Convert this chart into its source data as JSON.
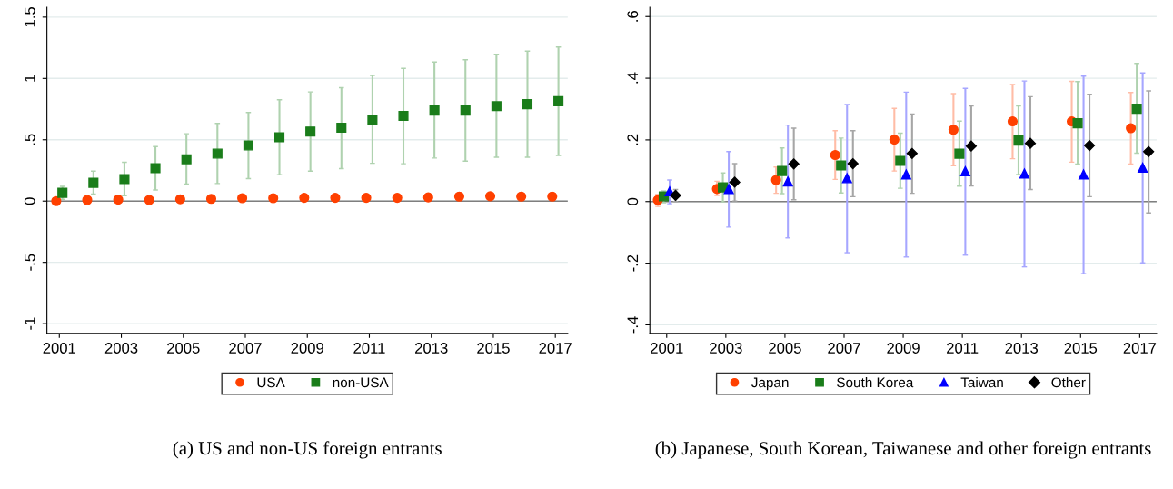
{
  "chart_data": [
    {
      "type": "scatter",
      "title": "(a) US and non-US foreign entrants",
      "xlim": [
        2000.6,
        2017.4
      ],
      "xticks": [
        2001,
        2003,
        2005,
        2007,
        2009,
        2011,
        2013,
        2015,
        2017
      ],
      "ylim": [
        -1.08,
        1.58
      ],
      "yticks": [
        {
          "value": -1,
          "label": "-1"
        },
        {
          "value": -0.5,
          "label": "-.5"
        },
        0,
        {
          "value": 0.5,
          "label": ".5"
        },
        1,
        1.5
      ],
      "grid": "y",
      "legend": "bottom",
      "ref_lines": [
        {
          "axis": "y",
          "value": 0,
          "color": "#7f7f7f"
        }
      ],
      "series": [
        {
          "name": "USA",
          "color": "#ff4000",
          "marker": "circle",
          "x": [
            2000.9,
            2001.9,
            2002.9,
            2003.9,
            2004.9,
            2005.9,
            2006.9,
            2007.9,
            2008.9,
            2009.9,
            2010.9,
            2011.9,
            2012.9,
            2013.9,
            2014.9,
            2015.9,
            2016.9
          ],
          "values": [
            0.0,
            0.009,
            0.012,
            0.009,
            0.015,
            0.018,
            0.024,
            0.024,
            0.027,
            0.027,
            0.027,
            0.027,
            0.03,
            0.037,
            0.04,
            0.037,
            0.037
          ]
        },
        {
          "name": "non-USA",
          "color": "#1a7d1a",
          "marker": "square",
          "x": [
            2001.1,
            2002.1,
            2003.1,
            2004.1,
            2005.1,
            2006.1,
            2007.1,
            2008.1,
            2009.1,
            2010.1,
            2011.1,
            2012.1,
            2013.1,
            2014.1,
            2015.1,
            2016.1,
            2017.1
          ],
          "values": [
            0.067,
            0.149,
            0.18,
            0.268,
            0.341,
            0.387,
            0.454,
            0.521,
            0.567,
            0.598,
            0.665,
            0.695,
            0.738,
            0.738,
            0.774,
            0.79,
            0.814
          ],
          "errors": [
            [
              0.015,
              0.12
            ],
            [
              0.058,
              0.244
            ],
            [
              0.043,
              0.317
            ],
            [
              0.091,
              0.445
            ],
            [
              0.14,
              0.549
            ],
            [
              0.143,
              0.634
            ],
            [
              0.183,
              0.723
            ],
            [
              0.216,
              0.826
            ],
            [
              0.244,
              0.89
            ],
            [
              0.265,
              0.924
            ],
            [
              0.308,
              1.024
            ],
            [
              0.305,
              1.082
            ],
            [
              0.351,
              1.134
            ],
            [
              0.326,
              1.152
            ],
            [
              0.357,
              1.198
            ],
            [
              0.357,
              1.223
            ],
            [
              0.372,
              1.256
            ]
          ]
        }
      ]
    },
    {
      "type": "scatter",
      "title": "(b) Japanese, South Korean, Taiwanese and other foreign entrants",
      "xlim": [
        2000.43,
        2017.57
      ],
      "xticks": [
        2001,
        2003,
        2005,
        2007,
        2009,
        2011,
        2013,
        2015,
        2017
      ],
      "ylim": [
        -0.428,
        0.63
      ],
      "yticks": [
        {
          "value": -0.4,
          "label": "-.4"
        },
        {
          "value": -0.2,
          "label": "-.2"
        },
        0,
        {
          "value": 0.2,
          "label": ".2"
        },
        {
          "value": 0.4,
          "label": ".4"
        },
        {
          "value": 0.6,
          "label": ".6"
        }
      ],
      "grid": "y",
      "legend": "bottom",
      "ref_lines": [
        {
          "axis": "y",
          "value": 0,
          "color": "#7f7f7f"
        }
      ],
      "series": [
        {
          "name": "Japan",
          "color": "#ff4000",
          "marker": "circle",
          "x": [
            2000.7,
            2002.7,
            2004.7,
            2006.7,
            2008.7,
            2010.7,
            2012.7,
            2014.7,
            2016.7
          ],
          "values": [
            0.005,
            0.041,
            0.07,
            0.151,
            0.201,
            0.233,
            0.26,
            0.26,
            0.238
          ],
          "errors": [
            [
              -0.016,
              0.024
            ],
            [
              0.02,
              0.066
            ],
            [
              0.027,
              0.112
            ],
            [
              0.072,
              0.23
            ],
            [
              0.099,
              0.302
            ],
            [
              0.116,
              0.35
            ],
            [
              0.139,
              0.38
            ],
            [
              0.128,
              0.39
            ],
            [
              0.122,
              0.354
            ]
          ]
        },
        {
          "name": "South Korea",
          "color": "#1a7d1a",
          "marker": "square",
          "x": [
            2000.9,
            2002.9,
            2004.9,
            2006.9,
            2008.9,
            2010.9,
            2012.9,
            2014.9,
            2016.9
          ],
          "values": [
            0.017,
            0.046,
            0.099,
            0.117,
            0.132,
            0.155,
            0.198,
            0.254,
            0.301
          ],
          "errors": [
            [
              -0.004,
              0.035
            ],
            [
              -0.001,
              0.093
            ],
            [
              0.026,
              0.174
            ],
            [
              0.028,
              0.206
            ],
            [
              0.043,
              0.222
            ],
            [
              0.05,
              0.261
            ],
            [
              0.088,
              0.31
            ],
            [
              0.122,
              0.389
            ],
            [
              0.157,
              0.448
            ]
          ]
        },
        {
          "name": "Taiwan",
          "color": "#0000ff",
          "marker": "triangle",
          "x": [
            2001.1,
            2003.1,
            2005.1,
            2007.1,
            2009.1,
            2011.1,
            2013.1,
            2015.1,
            2017.1
          ],
          "values": [
            0.033,
            0.041,
            0.065,
            0.076,
            0.088,
            0.098,
            0.091,
            0.088,
            0.11
          ],
          "errors": [
            [
              -0.007,
              0.07
            ],
            [
              -0.083,
              0.162
            ],
            [
              -0.118,
              0.248
            ],
            [
              -0.166,
              0.315
            ],
            [
              -0.18,
              0.355
            ],
            [
              -0.174,
              0.367
            ],
            [
              -0.212,
              0.391
            ],
            [
              -0.234,
              0.407
            ],
            [
              -0.199,
              0.417
            ]
          ]
        },
        {
          "name": "Other",
          "color": "#000000",
          "marker": "diamond",
          "x": [
            2001.3,
            2003.3,
            2005.3,
            2007.3,
            2009.3,
            2011.3,
            2013.3,
            2015.3,
            2017.3
          ],
          "values": [
            0.02,
            0.063,
            0.122,
            0.123,
            0.156,
            0.18,
            0.189,
            0.182,
            0.162
          ],
          "errors": [
            [
              0.0,
              0.039
            ],
            [
              0.002,
              0.123
            ],
            [
              0.006,
              0.238
            ],
            [
              0.016,
              0.23
            ],
            [
              0.027,
              0.284
            ],
            [
              0.051,
              0.31
            ],
            [
              0.039,
              0.34
            ],
            [
              0.016,
              0.348
            ],
            [
              -0.037,
              0.359
            ]
          ]
        }
      ]
    }
  ]
}
